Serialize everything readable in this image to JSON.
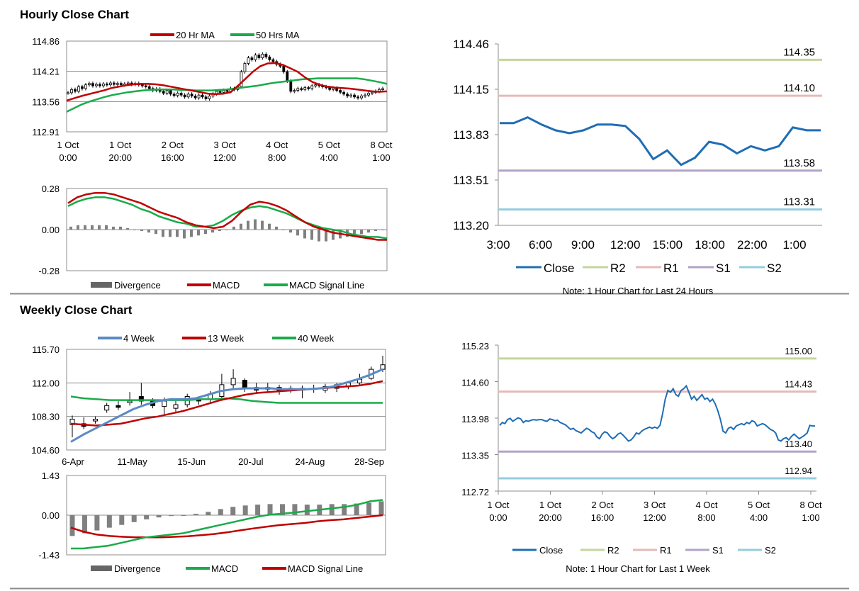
{
  "sections": {
    "hourly_title": "Hourly Close Chart",
    "weekly_title": "Weekly Close Chart"
  },
  "colors": {
    "red": "#c00000",
    "green": "#1aab4a",
    "blue": "#1f6db5",
    "steel": "#5a8ac6",
    "r2": "#c3d69b",
    "r1": "#e6b9b8",
    "s1": "#b3a2c7",
    "s2": "#93cddd",
    "bar": "#808080",
    "candle": "#000000"
  },
  "chart_data": [
    {
      "id": "hourly_price",
      "type": "candlestick",
      "ylim": [
        112.91,
        114.86
      ],
      "yticks": [
        "114.86",
        "114.21",
        "113.56",
        "112.91"
      ],
      "xlabels": [
        [
          "1 Oct",
          "0:00"
        ],
        [
          "1 Oct",
          "20:00"
        ],
        [
          "2 Oct",
          "16:00"
        ],
        [
          "3 Oct",
          "12:00"
        ],
        [
          "4 Oct",
          "8:00"
        ],
        [
          "5 Oct",
          "4:00"
        ],
        [
          "8 Oct",
          "1:00"
        ]
      ],
      "legend": [
        "20 Hr MA",
        "50 Hrs MA"
      ],
      "close": [
        113.75,
        113.82,
        113.78,
        113.88,
        113.84,
        113.92,
        113.95,
        113.9,
        113.93,
        113.9,
        113.94,
        113.92,
        113.96,
        113.93,
        113.95,
        113.92,
        113.94,
        113.96,
        113.93,
        113.95,
        113.92,
        113.9,
        113.88,
        113.84,
        113.8,
        113.83,
        113.78,
        113.74,
        113.8,
        113.72,
        113.69,
        113.74,
        113.7,
        113.66,
        113.72,
        113.68,
        113.64,
        113.7,
        113.66,
        113.62,
        113.68,
        113.73,
        113.78,
        113.76,
        113.8,
        113.78,
        113.84,
        113.82,
        113.88,
        114.2,
        114.38,
        114.5,
        114.46,
        114.56,
        114.5,
        114.58,
        114.52,
        114.46,
        114.42,
        114.36,
        114.32,
        114.2,
        114.0,
        113.78,
        113.8,
        113.84,
        113.82,
        113.86,
        113.84,
        113.9,
        113.92,
        113.9,
        113.88,
        113.86,
        113.82,
        113.85,
        113.8,
        113.76,
        113.72,
        113.68,
        113.7,
        113.66,
        113.64,
        113.68,
        113.7,
        113.74,
        113.76,
        113.78,
        113.82,
        113.84
      ],
      "ma20": [
        113.58,
        113.63,
        113.68,
        113.72,
        113.76,
        113.8,
        113.85,
        113.88,
        113.91,
        113.93,
        113.94,
        113.94,
        113.93,
        113.91,
        113.88,
        113.85,
        113.82,
        113.79,
        113.76,
        113.73,
        113.72,
        113.73,
        113.76,
        113.9,
        114.05,
        114.2,
        114.32,
        114.38,
        114.39,
        114.35,
        114.28,
        114.2,
        114.08,
        113.98,
        113.92,
        113.88,
        113.86,
        113.85,
        113.84,
        113.82,
        113.8,
        113.78,
        113.77,
        113.78
      ],
      "ma50": [
        113.34,
        113.42,
        113.5,
        113.56,
        113.61,
        113.66,
        113.7,
        113.73,
        113.76,
        113.78,
        113.8,
        113.81,
        113.82,
        113.82,
        113.82,
        113.81,
        113.81,
        113.8,
        113.8,
        113.8,
        113.81,
        113.82,
        113.84,
        113.86,
        113.88,
        113.9,
        113.93,
        113.96,
        113.98,
        114.0,
        114.02,
        114.04,
        114.05,
        114.06,
        114.06,
        114.06,
        114.06,
        114.06,
        114.06,
        114.04,
        114.01,
        113.98,
        113.94
      ]
    },
    {
      "id": "hourly_macd",
      "type": "line+bar",
      "ylim": [
        -0.28,
        0.28
      ],
      "yticks": [
        "0.28",
        "0.00",
        "-0.28"
      ],
      "legend": [
        "Divergence",
        "MACD",
        "MACD Signal Line"
      ],
      "macd": [
        0.18,
        0.22,
        0.24,
        0.25,
        0.25,
        0.24,
        0.22,
        0.2,
        0.18,
        0.15,
        0.12,
        0.1,
        0.08,
        0.05,
        0.03,
        0.02,
        0.01,
        0.02,
        0.06,
        0.12,
        0.17,
        0.19,
        0.18,
        0.16,
        0.13,
        0.09,
        0.05,
        0.02,
        0.0,
        -0.02,
        -0.03,
        -0.04,
        -0.05,
        -0.06,
        -0.07,
        -0.07
      ],
      "signal": [
        0.16,
        0.19,
        0.21,
        0.22,
        0.22,
        0.21,
        0.19,
        0.17,
        0.14,
        0.12,
        0.09,
        0.07,
        0.05,
        0.04,
        0.02,
        0.02,
        0.03,
        0.06,
        0.1,
        0.13,
        0.15,
        0.16,
        0.15,
        0.13,
        0.11,
        0.08,
        0.05,
        0.03,
        0.01,
        0.0,
        -0.01,
        -0.03,
        -0.04,
        -0.05,
        -0.05,
        -0.06
      ],
      "divergence": [
        0.02,
        0.03,
        0.03,
        0.03,
        0.03,
        0.03,
        0.02,
        0.02,
        0.01,
        0.0,
        -0.01,
        -0.02,
        -0.03,
        -0.05,
        -0.05,
        -0.05,
        -0.06,
        -0.05,
        -0.04,
        -0.03,
        -0.02,
        -0.01,
        0.0,
        0.02,
        0.04,
        0.06,
        0.07,
        0.06,
        0.04,
        0.02,
        0.0,
        -0.02,
        -0.04,
        -0.06,
        -0.07,
        -0.08,
        -0.08,
        -0.07,
        -0.06,
        -0.05,
        -0.04,
        -0.03,
        -0.02,
        -0.01,
        0.0
      ]
    },
    {
      "id": "hourly_levels",
      "type": "line",
      "ylim": [
        113.2,
        114.46
      ],
      "yticks": [
        "114.46",
        "114.15",
        "113.83",
        "113.51",
        "113.20"
      ],
      "xlabels": [
        "3:00",
        "6:00",
        "9:00",
        "12:00",
        "15:00",
        "18:00",
        "22:00",
        "1:00"
      ],
      "close": [
        113.91,
        113.91,
        113.95,
        113.9,
        113.86,
        113.84,
        113.86,
        113.9,
        113.9,
        113.89,
        113.8,
        113.66,
        113.72,
        113.62,
        113.67,
        113.78,
        113.76,
        113.7,
        113.75,
        113.72,
        113.75,
        113.88,
        113.86,
        113.86
      ],
      "levels": {
        "R2": 114.35,
        "R1": 114.1,
        "S1": 113.58,
        "S2": 113.31
      },
      "level_labels": {
        "R2": "114.35",
        "R1": "114.10",
        "S1": "113.58",
        "S2": "113.31"
      },
      "legend": [
        "Close",
        "R2",
        "R1",
        "S1",
        "S2"
      ],
      "note": "Note: 1 Hour Chart for Last 24 Hours"
    },
    {
      "id": "weekly_price",
      "type": "candlestick",
      "ylim": [
        104.6,
        115.7
      ],
      "yticks": [
        "115.70",
        "112.00",
        "108.30",
        "104.60"
      ],
      "xlabels": [
        "6-Apr",
        "11-May",
        "15-Jun",
        "20-Jul",
        "24-Aug",
        "28-Sep"
      ],
      "legend": [
        "4 Week",
        "13 Week",
        "40 Week"
      ],
      "open": [
        107.4,
        107.5,
        107.8,
        109.0,
        109.5,
        109.8,
        110.5,
        110.0,
        109.4,
        109.2,
        109.6,
        110.2,
        110.2,
        110.5,
        111.8,
        112.3,
        111.5,
        111.3,
        111.5,
        111.2,
        111.4,
        111.3,
        111.2,
        111.4,
        111.6,
        112.0,
        112.5,
        113.5
      ],
      "close": [
        108.0,
        107.2,
        108.0,
        109.5,
        109.3,
        110.0,
        110.0,
        109.5,
        110.0,
        109.6,
        110.5,
        110.0,
        110.8,
        111.8,
        112.5,
        111.5,
        111.2,
        111.5,
        111.1,
        111.4,
        111.2,
        111.4,
        111.6,
        111.8,
        112.0,
        112.4,
        113.5,
        114.0
      ],
      "high": [
        108.4,
        108.2,
        108.3,
        109.8,
        110.0,
        111.0,
        112.0,
        110.3,
        110.4,
        110.0,
        110.8,
        110.5,
        111.1,
        113.0,
        113.5,
        112.5,
        112.0,
        112.0,
        111.8,
        111.7,
        111.7,
        111.8,
        111.9,
        112.0,
        112.2,
        113.0,
        113.8,
        115.0
      ],
      "low": [
        106.0,
        106.9,
        107.5,
        108.7,
        109.0,
        109.5,
        109.6,
        109.2,
        108.5,
        108.8,
        109.3,
        109.6,
        109.8,
        110.3,
        111.4,
        111.0,
        110.9,
        111.0,
        110.7,
        110.9,
        110.3,
        110.9,
        110.9,
        111.0,
        111.3,
        111.8,
        112.3,
        113.2
      ],
      "ma4": [
        105.5,
        106.3,
        107.0,
        107.7,
        108.4,
        109.1,
        109.6,
        110.0,
        110.2,
        110.2,
        110.3,
        110.7,
        111.1,
        111.3,
        111.4,
        111.4,
        111.4,
        111.3,
        111.3,
        111.3,
        111.4,
        111.6,
        112.0,
        112.4,
        112.9,
        113.5
      ],
      "ma13": [
        107.5,
        107.4,
        107.3,
        107.4,
        107.5,
        107.8,
        108.1,
        108.3,
        108.6,
        108.9,
        109.3,
        109.7,
        110.1,
        110.4,
        110.7,
        110.9,
        111.0,
        111.1,
        111.2,
        111.3,
        111.4,
        111.5,
        111.6,
        111.7,
        111.9,
        112.2
      ],
      "ma40": [
        110.5,
        110.3,
        110.2,
        110.1,
        110.1,
        110.1,
        110.1,
        110.1,
        110.1,
        110.1,
        110.2,
        110.2,
        110.3,
        110.2,
        110.0,
        109.9,
        109.8,
        109.8,
        109.8,
        109.8,
        109.8,
        109.8,
        109.8,
        109.8,
        109.8
      ]
    },
    {
      "id": "weekly_macd",
      "type": "line+bar",
      "ylim": [
        -1.43,
        1.43
      ],
      "yticks": [
        "1.43",
        "0.00",
        "-1.43"
      ],
      "legend": [
        "Divergence",
        "MACD",
        "MACD Signal Line"
      ],
      "macd": [
        -1.2,
        -1.2,
        -1.15,
        -1.1,
        -1.0,
        -0.9,
        -0.8,
        -0.75,
        -0.7,
        -0.65,
        -0.55,
        -0.45,
        -0.35,
        -0.25,
        -0.15,
        -0.05,
        0.02,
        0.06,
        0.1,
        0.15,
        0.2,
        0.25,
        0.3,
        0.38,
        0.5,
        0.55
      ],
      "signal": [
        -0.45,
        -0.6,
        -0.7,
        -0.75,
        -0.78,
        -0.8,
        -0.8,
        -0.8,
        -0.78,
        -0.76,
        -0.72,
        -0.68,
        -0.62,
        -0.55,
        -0.48,
        -0.42,
        -0.36,
        -0.32,
        -0.28,
        -0.22,
        -0.18,
        -0.15,
        -0.1,
        -0.05,
        0.0
      ],
      "divergence": [
        -0.75,
        -0.65,
        -0.55,
        -0.45,
        -0.35,
        -0.25,
        -0.15,
        -0.08,
        -0.03,
        0.0,
        0.05,
        0.12,
        0.22,
        0.3,
        0.35,
        0.38,
        0.4,
        0.4,
        0.4,
        0.38,
        0.38,
        0.4,
        0.4,
        0.42,
        0.45,
        0.5
      ]
    },
    {
      "id": "weekly_levels",
      "type": "line",
      "ylim": [
        112.72,
        115.23
      ],
      "yticks": [
        "115.23",
        "114.60",
        "113.98",
        "113.35",
        "112.72"
      ],
      "xlabels": [
        [
          "1 Oct",
          "0:00"
        ],
        [
          "1 Oct",
          "20:00"
        ],
        [
          "2 Oct",
          "16:00"
        ],
        [
          "3 Oct",
          "12:00"
        ],
        [
          "4 Oct",
          "8:00"
        ],
        [
          "5 Oct",
          "4:00"
        ],
        [
          "8 Oct",
          "1:00"
        ]
      ],
      "close": [
        113.85,
        113.9,
        113.88,
        113.95,
        113.97,
        113.92,
        113.95,
        113.98,
        113.96,
        113.9,
        113.93,
        113.92,
        113.94,
        113.95,
        113.94,
        113.95,
        113.95,
        113.93,
        113.92,
        113.96,
        113.95,
        113.93,
        113.94,
        113.9,
        113.88,
        113.86,
        113.82,
        113.78,
        113.8,
        113.76,
        113.74,
        113.72,
        113.76,
        113.8,
        113.78,
        113.74,
        113.72,
        113.65,
        113.62,
        113.7,
        113.74,
        113.72,
        113.66,
        113.62,
        113.65,
        113.7,
        113.72,
        113.68,
        113.63,
        113.58,
        113.6,
        113.65,
        113.72,
        113.7,
        113.75,
        113.78,
        113.8,
        113.82,
        113.8,
        113.82,
        113.8,
        113.85,
        114.05,
        114.3,
        114.45,
        114.42,
        114.48,
        114.38,
        114.35,
        114.45,
        114.48,
        114.53,
        114.42,
        114.3,
        114.35,
        114.28,
        114.33,
        114.38,
        114.3,
        114.32,
        114.26,
        114.3,
        114.22,
        114.1,
        113.95,
        113.75,
        113.72,
        113.8,
        113.82,
        113.78,
        113.84,
        113.86,
        113.88,
        113.86,
        113.9,
        113.88,
        113.93,
        113.91,
        113.84,
        113.86,
        113.88,
        113.86,
        113.82,
        113.78,
        113.76,
        113.72,
        113.6,
        113.58,
        113.62,
        113.64,
        113.6,
        113.66,
        113.7,
        113.66,
        113.62,
        113.65,
        113.68,
        113.72,
        113.85,
        113.84,
        113.84
      ],
      "levels": {
        "R2": 115.0,
        "R1": 114.43,
        "S1": 113.4,
        "S2": 112.94
      },
      "level_labels": {
        "R2": "115.00",
        "R1": "114.43",
        "S1": "113.40",
        "S2": "112.94"
      },
      "legend": [
        "Close",
        "R2",
        "R1",
        "S1",
        "S2"
      ],
      "note": "Note: 1 Hour Chart for Last 1 Week"
    }
  ]
}
